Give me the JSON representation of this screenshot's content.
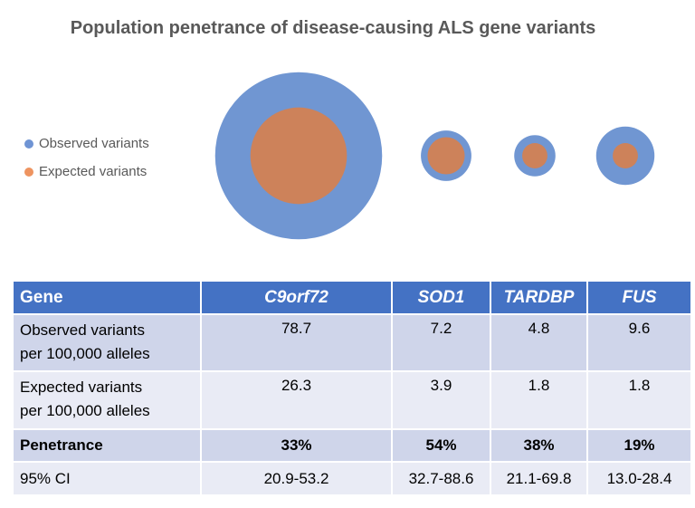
{
  "chart_data": {
    "type": "bubble",
    "title": "Population penetrance of disease-causing ALS gene variants",
    "categories": [
      "C9orf72",
      "SOD1",
      "TARDBP",
      "FUS"
    ],
    "series": [
      {
        "name": "Observed variants",
        "color": "#7096D2",
        "values": [
          78.7,
          7.2,
          4.8,
          9.6
        ]
      },
      {
        "name": "Expected variants",
        "color": "#CD825A",
        "values": [
          26.3,
          3.9,
          1.8,
          1.8
        ]
      }
    ],
    "legend_position": "left",
    "legend_colors": [
      "#4472C4",
      "#ED7D31"
    ]
  },
  "table": {
    "header": [
      "Gene",
      "C9orf72",
      "SOD1",
      "TARDBP",
      "FUS"
    ],
    "rows": [
      {
        "label_line1": "Observed variants",
        "label_line2": "per 100,000 alleles",
        "values": [
          "78.7",
          "7.2",
          "4.8",
          "9.6"
        ]
      },
      {
        "label_line1": "Expected variants",
        "label_line2": "per 100,000 alleles",
        "values": [
          "26.3",
          "3.9",
          "1.8",
          "1.8"
        ]
      },
      {
        "label_line1": "Penetrance",
        "values": [
          "33%",
          "54%",
          "38%",
          "19%"
        ]
      },
      {
        "label_line1": "95% CI",
        "values": [
          "20.9-53.2",
          "32.7-88.6",
          "21.1-69.8",
          "13.0-28.4"
        ]
      }
    ],
    "header_color": "#4472C4"
  }
}
